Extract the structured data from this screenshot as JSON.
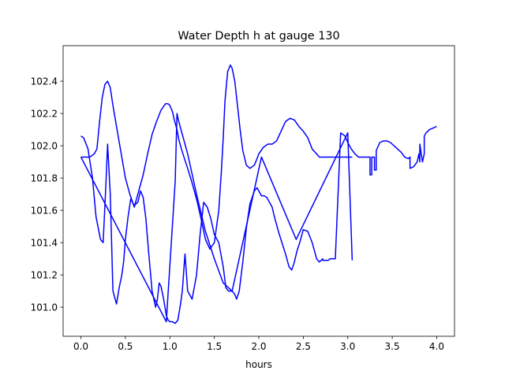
{
  "chart_data": {
    "type": "line",
    "title": "Water Depth h at gauge 130",
    "xlabel": "hours",
    "ylabel": "",
    "xlim": [
      -0.2,
      4.2
    ],
    "ylim": [
      100.82,
      102.62
    ],
    "x_ticks": [
      0.0,
      0.5,
      1.0,
      1.5,
      2.0,
      2.5,
      3.0,
      3.5,
      4.0
    ],
    "x_tick_labels": [
      "0.0",
      "0.5",
      "1.0",
      "1.5",
      "2.0",
      "2.5",
      "3.0",
      "3.5",
      "4.0"
    ],
    "y_ticks": [
      101.0,
      101.2,
      101.4,
      101.6,
      101.8,
      102.0,
      102.2,
      102.4
    ],
    "y_tick_labels": [
      "101.0",
      "101.2",
      "101.4",
      "101.6",
      "101.8",
      "102.0",
      "102.2",
      "102.4"
    ],
    "grid": false,
    "legend": "none",
    "series": [
      {
        "color": "#0000ff",
        "x": [
          0.0,
          0.03,
          0.08,
          0.13,
          0.17,
          0.22,
          0.25,
          0.28,
          0.3,
          0.33,
          0.36,
          0.4,
          0.43,
          0.46,
          0.48,
          0.5,
          0.53,
          0.56,
          0.6,
          0.64,
          0.67,
          0.7,
          0.73,
          0.76,
          0.8,
          0.84,
          0.86,
          0.88,
          0.9,
          0.93,
          0.96,
          0.98,
          1.0,
          1.03,
          1.06,
          1.09,
          1.12,
          1.14,
          1.17,
          1.2,
          1.25,
          1.3,
          1.34,
          1.38,
          1.42,
          1.46,
          1.5,
          1.55,
          1.6,
          1.63,
          1.66,
          1.7,
          1.73,
          1.75,
          1.78,
          1.82,
          1.86,
          1.9,
          1.95,
          1.98,
          2.0,
          2.03,
          2.06,
          2.09,
          2.12,
          2.15,
          2.18,
          2.22,
          2.26,
          2.3,
          2.34,
          2.37,
          2.4,
          2.43,
          2.46,
          2.5,
          2.55,
          2.6,
          2.65,
          2.68,
          2.7,
          2.72,
          2.72,
          2.74,
          2.78,
          2.8,
          2.8,
          2.86,
          2.92,
          2.97,
          3.0,
          3.04,
          3.08,
          3.12,
          3.16,
          3.2,
          3.23,
          3.25,
          3.25,
          3.27,
          3.27,
          3.3,
          3.3,
          3.32,
          3.32,
          3.36,
          3.4,
          3.44,
          3.48,
          3.52,
          3.56,
          3.6,
          3.64,
          3.68,
          3.7,
          3.7,
          3.74,
          3.78,
          3.8,
          3.81,
          3.81,
          3.84,
          3.86,
          3.86,
          3.88,
          3.92,
          3.96,
          4.0
        ],
        "y": [
          102.06,
          102.05,
          101.98,
          101.8,
          101.56,
          101.42,
          101.4,
          101.75,
          102.01,
          101.7,
          101.1,
          101.02,
          101.12,
          101.2,
          101.28,
          101.42,
          101.56,
          101.67,
          101.63,
          101.65,
          101.72,
          101.68,
          101.55,
          101.35,
          101.1,
          101.0,
          101.05,
          101.15,
          101.13,
          101.05,
          100.95,
          100.92,
          100.91,
          100.91,
          100.9,
          100.92,
          101.02,
          101.1,
          101.33,
          101.1,
          101.05,
          101.2,
          101.45,
          101.65,
          101.62,
          101.55,
          101.45,
          101.4,
          101.25,
          101.12,
          101.1,
          101.1,
          101.08,
          101.05,
          101.1,
          101.28,
          101.49,
          101.64,
          101.72,
          101.74,
          101.72,
          101.69,
          101.69,
          101.68,
          101.65,
          101.62,
          101.55,
          101.47,
          101.4,
          101.33,
          101.25,
          101.23,
          101.28,
          101.35,
          101.4,
          101.48,
          101.47,
          101.4,
          101.3,
          101.28,
          101.29,
          101.3,
          101.29,
          101.29,
          101.29,
          101.3,
          101.3,
          101.3,
          102.08,
          102.06,
          102.02,
          101.98,
          101.95,
          101.93,
          101.93,
          101.93,
          101.93,
          101.93,
          101.82,
          101.82,
          101.93,
          101.93,
          101.85,
          101.85,
          101.97,
          102.02,
          102.03,
          102.03,
          102.02,
          102.0,
          101.98,
          101.96,
          101.93,
          101.92,
          101.93,
          101.86,
          101.87,
          101.9,
          101.95,
          101.9,
          102.01,
          101.9,
          101.95,
          102.06,
          102.08,
          102.1,
          102.11,
          102.12
        ]
      },
      {
        "color": "#0000ff",
        "x": [
          0.0,
          0.05,
          0.1,
          0.15,
          0.18,
          0.21,
          0.24,
          0.27,
          0.3,
          0.33,
          0.36,
          0.4,
          0.45,
          0.5,
          0.55,
          0.6,
          0.65,
          0.7,
          0.75,
          0.8,
          0.85,
          0.9,
          0.95,
          0.98,
          1.0,
          1.03,
          1.05,
          1.08,
          1.1,
          1.13,
          1.17,
          1.2,
          1.25,
          1.3,
          1.35,
          1.4,
          1.45,
          1.5,
          1.55,
          1.58,
          1.6,
          1.62,
          1.65,
          1.68,
          1.7,
          1.73,
          1.76,
          1.79,
          1.82,
          1.86,
          1.9,
          1.95,
          1.98,
          2.0,
          2.05,
          2.1,
          2.15,
          2.2,
          2.25,
          2.3,
          2.35,
          2.4,
          2.45,
          2.5,
          2.55,
          2.6,
          2.65,
          2.68,
          2.7,
          2.72,
          2.74,
          2.76,
          2.8,
          2.9,
          3.0,
          3.05
        ],
        "y": [
          101.93,
          101.93,
          101.93,
          101.95,
          101.98,
          102.15,
          102.3,
          102.38,
          102.4,
          102.36,
          102.25,
          102.12,
          101.96,
          101.8,
          101.7,
          101.62,
          101.72,
          101.82,
          101.95,
          102.07,
          102.15,
          102.22,
          102.26,
          102.26,
          102.25,
          102.21,
          102.16,
          102.1,
          102.04,
          101.98,
          101.91,
          101.86,
          101.77,
          101.67,
          101.55,
          101.42,
          101.36,
          101.4,
          101.6,
          101.85,
          102.05,
          102.28,
          102.46,
          102.5,
          102.48,
          102.4,
          102.25,
          102.1,
          101.97,
          101.88,
          101.86,
          101.88,
          101.92,
          101.95,
          101.99,
          102.01,
          102.01,
          102.03,
          102.09,
          102.15,
          102.17,
          102.16,
          102.12,
          102.09,
          102.05,
          101.98,
          101.95,
          101.93,
          101.93,
          101.93,
          101.93,
          101.93,
          101.93,
          101.93,
          101.93,
          101.93
        ]
      },
      {
        "color": "#0000ff",
        "x": [
          0.0,
          0.96,
          1.06,
          1.08,
          1.1,
          1.2,
          1.3,
          1.4,
          1.5,
          1.6,
          1.7,
          2.03,
          2.42,
          3.0,
          3.05
        ],
        "y": [
          101.93,
          100.91,
          101.78,
          102.2,
          102.15,
          101.95,
          101.7,
          101.47,
          101.3,
          101.15,
          101.1,
          101.93,
          101.42,
          102.08,
          101.29
        ]
      }
    ]
  }
}
